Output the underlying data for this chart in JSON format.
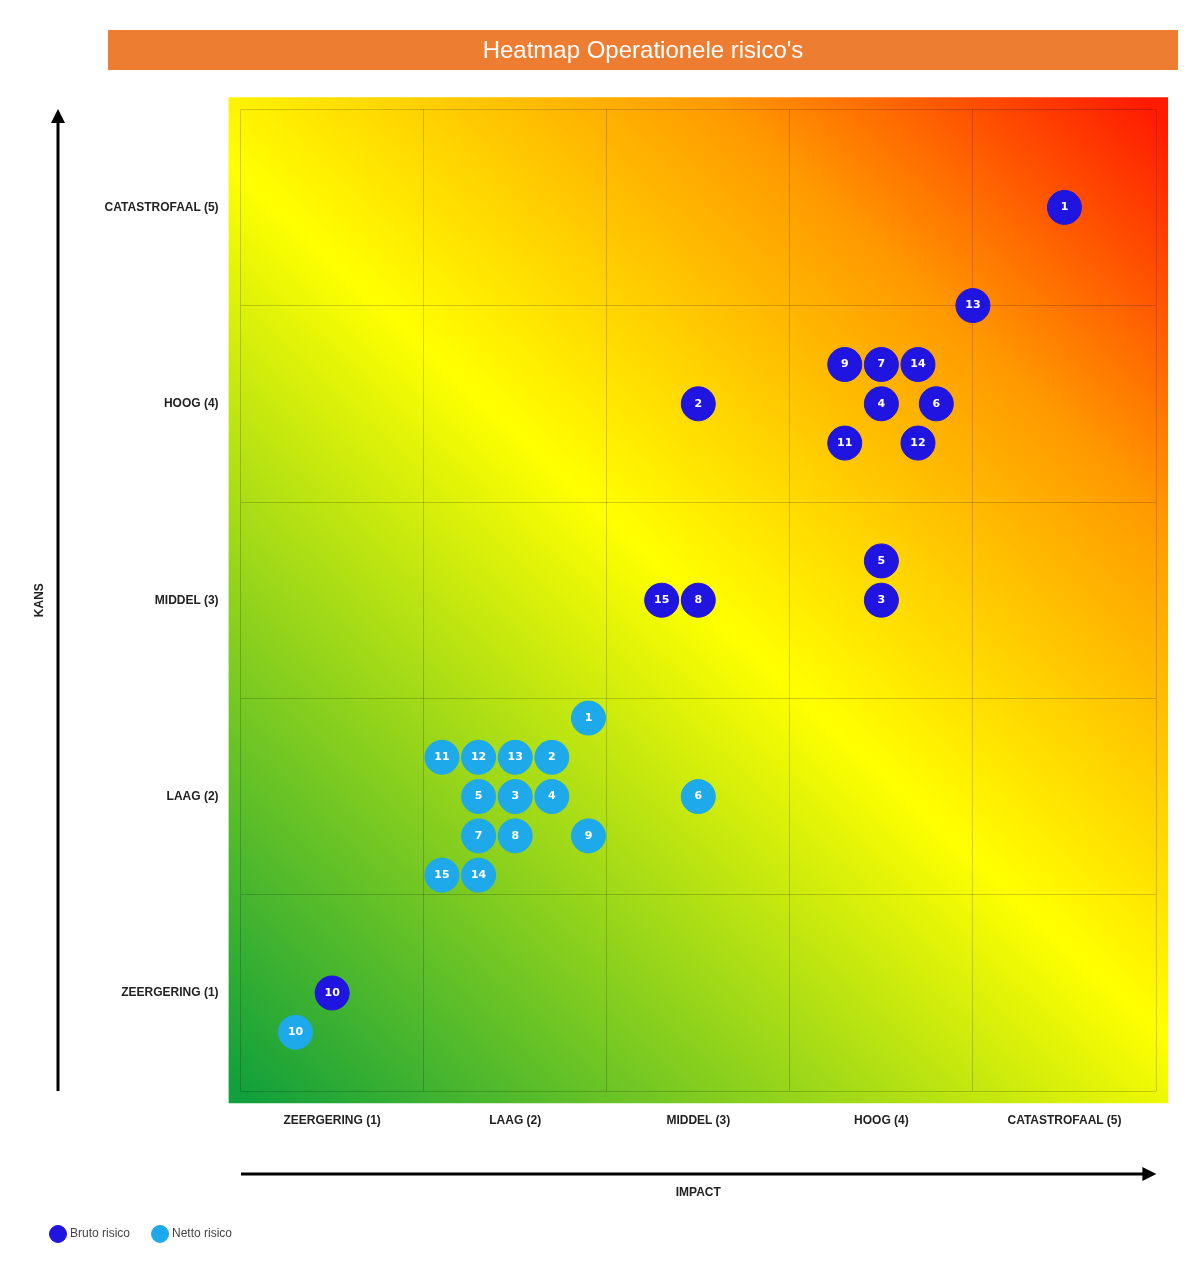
{
  "chart_data": {
    "type": "scatter",
    "title": "Heatmap Operationele risico's",
    "xlabel": "IMPACT",
    "ylabel": "KANS",
    "xlim": [
      0.5,
      5.5
    ],
    "ylim": [
      0.5,
      5.5
    ],
    "xticks": [
      {
        "value": 0.5,
        "label": null
      },
      {
        "value": 1,
        "label": "ZEERGERING (1)"
      },
      {
        "value": 1.5,
        "label": null
      },
      {
        "value": 2,
        "label": "LAAG (2)"
      },
      {
        "value": 2.5,
        "label": null
      },
      {
        "value": 3,
        "label": "MIDDEL (3)"
      },
      {
        "value": 3.5,
        "label": null
      },
      {
        "value": 4,
        "label": "HOOG (4)"
      },
      {
        "value": 4.5,
        "label": null
      },
      {
        "value": 5,
        "label": "CATASTROFAAL (5)"
      },
      {
        "value": 5.5,
        "label": null
      }
    ],
    "yticks": [
      {
        "value": 0.5,
        "label": null
      },
      {
        "value": 1,
        "label": "ZEERGERING (1)"
      },
      {
        "value": 1.5,
        "label": null
      },
      {
        "value": 2,
        "label": "LAAG (2)"
      },
      {
        "value": 2.5,
        "label": null
      },
      {
        "value": 3,
        "label": "MIDDEL (3)"
      },
      {
        "value": 3.5,
        "label": null
      },
      {
        "value": 4,
        "label": "HOOG (4)"
      },
      {
        "value": 4.5,
        "label": null
      },
      {
        "value": 5,
        "label": "CATASTROFAAL (5)"
      },
      {
        "value": 5.5,
        "label": null
      }
    ],
    "grid": true,
    "legend": "bottom left",
    "marker": "circle",
    "annotations": [
      {
        "text": "1",
        "x": 5,
        "y": 5
      },
      {
        "text": "13",
        "x": 4.5,
        "y": 4.5
      },
      {
        "text": "9",
        "x": 3.8,
        "y": 4.2
      },
      {
        "text": "7",
        "x": 4,
        "y": 4.2
      },
      {
        "text": "14",
        "x": 4.2,
        "y": 4.2
      },
      {
        "text": "4",
        "x": 4,
        "y": 4
      },
      {
        "text": "6",
        "x": 4.3,
        "y": 4
      },
      {
        "text": "11",
        "x": 3.8,
        "y": 3.8
      },
      {
        "text": "12",
        "x": 4.2,
        "y": 3.8
      },
      {
        "text": "2",
        "x": 3,
        "y": 4
      },
      {
        "text": "5",
        "x": 4,
        "y": 3.2
      },
      {
        "text": "3",
        "x": 4,
        "y": 3
      },
      {
        "text": "15",
        "x": 2.8,
        "y": 3
      },
      {
        "text": "8",
        "x": 3,
        "y": 3
      },
      {
        "text": "10",
        "x": 1,
        "y": 1
      },
      {
        "text": "1",
        "x": 2.4,
        "y": 2.4
      },
      {
        "text": "11",
        "x": 1.6,
        "y": 2.2
      },
      {
        "text": "12",
        "x": 1.8,
        "y": 2.2
      },
      {
        "text": "13",
        "x": 2,
        "y": 2.2
      },
      {
        "text": "2",
        "x": 2.2,
        "y": 2.2
      },
      {
        "text": "5",
        "x": 1.8,
        "y": 2
      },
      {
        "text": "3",
        "x": 2,
        "y": 2
      },
      {
        "text": "4",
        "x": 2.2,
        "y": 2
      },
      {
        "text": "6",
        "x": 3,
        "y": 2
      },
      {
        "text": "7",
        "x": 1.8,
        "y": 1.8
      },
      {
        "text": "8",
        "x": 2,
        "y": 1.8
      },
      {
        "text": "9",
        "x": 2.4,
        "y": 1.8
      },
      {
        "text": "15",
        "x": 1.6,
        "y": 1.6
      },
      {
        "text": "14",
        "x": 1.8,
        "y": 1.6
      },
      {
        "text": "10",
        "x": 0.8,
        "y": 0.8
      }
    ],
    "series": [
      {
        "name": "Bruto risico",
        "color": "#1f14e0",
        "x": [
          5,
          4.5,
          3.8,
          4,
          4.2,
          4,
          4.3,
          3.8,
          4.2,
          3,
          4,
          4,
          2.8,
          3,
          1
        ],
        "values": [
          5,
          4.5,
          4.2,
          4.2,
          4.2,
          4,
          4,
          3.8,
          3.8,
          4,
          3.2,
          3,
          3,
          3,
          1
        ]
      },
      {
        "name": "Netto risico",
        "color": "#1eaaea",
        "x": [
          2.4,
          1.6,
          1.8,
          2,
          2.2,
          1.8,
          2,
          2.2,
          3,
          1.8,
          2,
          2.4,
          1.6,
          1.8,
          0.8
        ],
        "values": [
          2.4,
          2.2,
          2.2,
          2.2,
          2.2,
          2,
          2,
          2,
          2,
          1.8,
          1.8,
          1.8,
          1.6,
          1.6,
          0.8
        ]
      }
    ]
  }
}
